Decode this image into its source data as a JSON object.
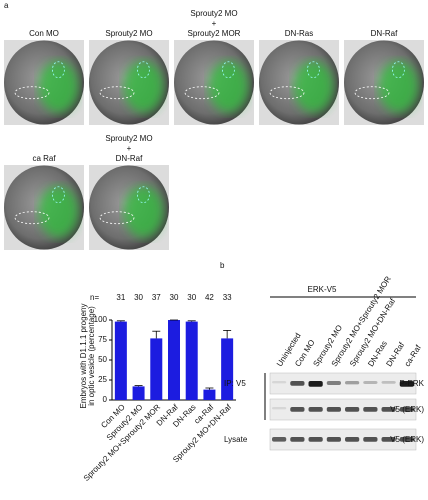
{
  "panel_a": {
    "label": "a",
    "images": [
      {
        "caption": [
          "Con MO"
        ]
      },
      {
        "caption": [
          "Sprouty2 MO"
        ]
      },
      {
        "caption": [
          "Sprouty2 MO",
          "+",
          "Sprouty2 MOR"
        ]
      },
      {
        "caption": [
          "DN-Ras"
        ]
      },
      {
        "caption": [
          "DN-Raf"
        ]
      },
      {
        "caption": [
          "ca Raf"
        ]
      },
      {
        "caption": [
          "Sprouty2 MO",
          "+",
          "DN-Raf"
        ]
      }
    ]
  },
  "chart_data": {
    "type": "bar",
    "ylabel": [
      "Embryos with D1.1.1 progeny",
      "in optic vesicle (percentage)"
    ],
    "categories": [
      "Con MO",
      "Sprouty2 MO",
      "Sprouty2 MO+Sprouty2 MOR",
      "DN-Raf",
      "DN-Ras",
      "ca-Raf",
      "Sprouty2 MO+DN-Raf"
    ],
    "values": [
      98,
      17,
      77,
      100,
      98,
      13,
      77
    ],
    "errors": [
      1,
      1,
      9,
      0,
      1,
      2,
      10
    ],
    "n_label": "n=",
    "n": [
      31,
      30,
      37,
      30,
      30,
      42,
      33
    ],
    "color": "#1c1ce0",
    "ylim": [
      0,
      110
    ],
    "yticks": [
      0,
      25,
      50,
      75,
      100
    ]
  },
  "panel_b": {
    "label": "b",
    "group": "ERK-V5",
    "lanes": [
      "Uninjected",
      "Con MO",
      "Sprouty2 MO",
      "Sprouty2 MO+Sprouty2 MOR",
      "Sprouty2 MO+DN-Raf",
      "DN-Ras",
      "DN-Raf",
      "ca-Raf"
    ],
    "ip_label": "IP: V5",
    "lysate_label": "Lysate",
    "blots": [
      "P-ERK",
      "V5 (ERK)",
      "V5 (ERK)"
    ]
  }
}
